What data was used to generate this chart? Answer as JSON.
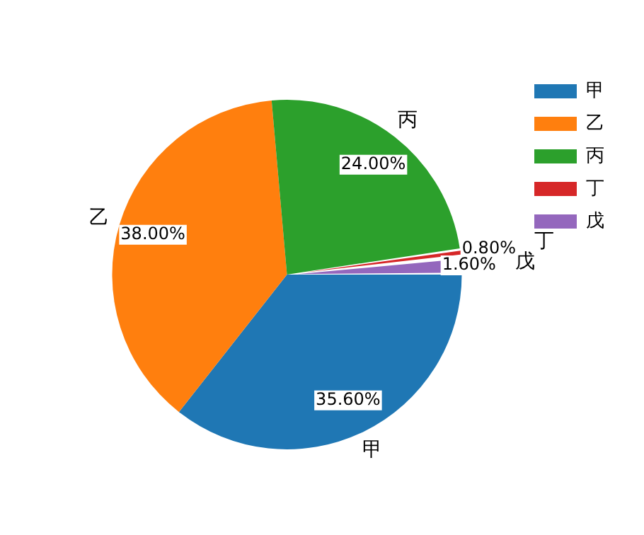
{
  "chart_data": {
    "type": "pie",
    "categories": [
      "甲",
      "乙",
      "丙",
      "丁",
      "戊"
    ],
    "values": [
      35.6,
      38.0,
      24.0,
      0.8,
      1.6
    ],
    "colors": [
      "#1f77b4",
      "#ff7f0e",
      "#2ca02c",
      "#d62728",
      "#9467bd"
    ],
    "value_labels": [
      "35.60%",
      "38.00%",
      "24.00%",
      "0.80%",
      "1.60%"
    ],
    "legend": "top right"
  }
}
